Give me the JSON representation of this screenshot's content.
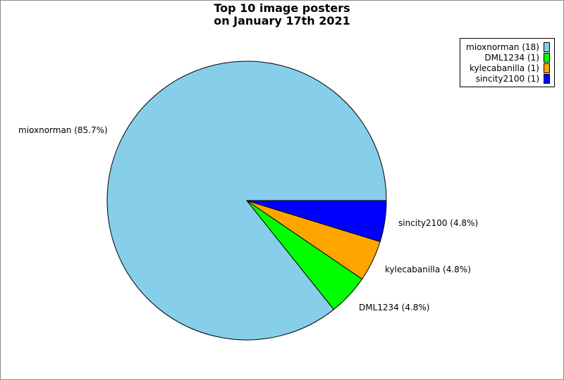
{
  "chart_data": {
    "type": "pie",
    "title_lines": [
      "Top 10 image posters",
      "on January 17th 2021"
    ],
    "slices": [
      {
        "name": "mioxnorman",
        "count": 18,
        "percent": 85.7,
        "color": "#87ceeb",
        "legend_label": "mioxnorman (18)",
        "slice_label": "mioxnorman (85.7%)"
      },
      {
        "name": "DML1234",
        "count": 1,
        "percent": 4.8,
        "color": "#00ff00",
        "legend_label": "DML1234 (1)",
        "slice_label": "DML1234 (4.8%)"
      },
      {
        "name": "kylecabanilla",
        "count": 1,
        "percent": 4.8,
        "color": "#ffa500",
        "legend_label": "kylecabanilla (1)",
        "slice_label": "kylecabanilla (4.8%)"
      },
      {
        "name": "sincity2100",
        "count": 1,
        "percent": 4.8,
        "color": "#0000ff",
        "legend_label": "sincity2100 (1)",
        "slice_label": "sincity2100 (4.8%)"
      }
    ],
    "legend_position": "top-right"
  }
}
